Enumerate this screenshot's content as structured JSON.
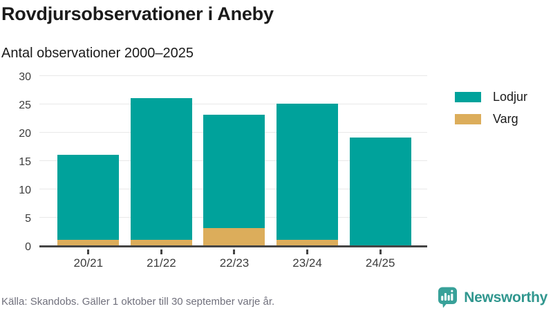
{
  "header": {
    "title": "Rovdjursobservationer i Aneby",
    "subtitle": "Antal observationer 2000–2025"
  },
  "chart_data": {
    "type": "bar",
    "stacked": true,
    "title": "Rovdjursobservationer i Aneby",
    "subtitle": "Antal observationer 2000–2025",
    "categories": [
      "20/21",
      "21/22",
      "22/23",
      "23/24",
      "24/25"
    ],
    "series": [
      {
        "name": "Lodjur",
        "color": "#00a29b",
        "values": [
          15,
          25,
          20,
          24,
          19
        ]
      },
      {
        "name": "Varg",
        "color": "#dcad5b",
        "values": [
          1,
          1,
          3,
          1,
          0
        ]
      }
    ],
    "stack_order": "last-series-at-bottom",
    "totals": [
      16,
      26,
      23,
      25,
      19
    ],
    "xlabel": "",
    "ylabel": "",
    "ylim": [
      0,
      30
    ],
    "yticks": [
      0,
      5,
      10,
      15,
      20,
      25,
      30
    ],
    "grid": true,
    "gridline_color": "#e8e8e8",
    "axis_color": "#454545",
    "legend_position": "right"
  },
  "footer": {
    "source": "Källa: Skandobs. Gäller 1 oktober till 30 september varje år.",
    "brand": "Newsworthy",
    "brand_color": "#31978f"
  }
}
